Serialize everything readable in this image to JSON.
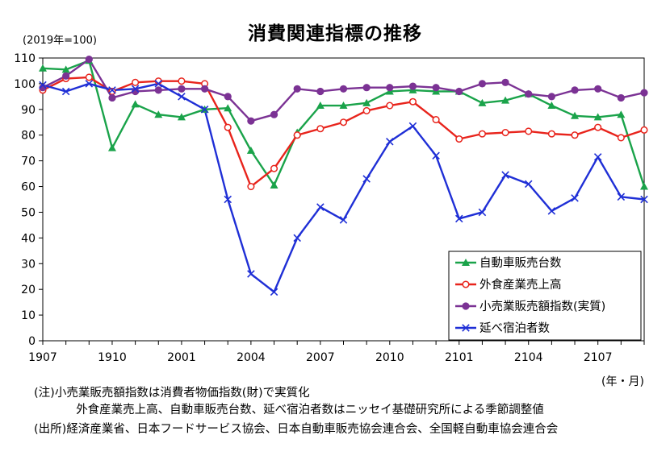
{
  "chart_data": {
    "type": "line",
    "title": "消費関連指標の推移",
    "unit_label": "(2019年=100)",
    "x_unit_label": "(年・月)",
    "x": [
      "1907",
      "1908",
      "1909",
      "1910",
      "1911",
      "1912",
      "2001",
      "2002",
      "2003",
      "2004",
      "2005",
      "2006",
      "2007",
      "2008",
      "2009",
      "2010",
      "2011",
      "2012",
      "2101",
      "2102",
      "2103",
      "2104",
      "2105",
      "2106",
      "2107",
      "2108",
      "2109"
    ],
    "x_tick_labels": [
      "1907",
      "1910",
      "2001",
      "2004",
      "2007",
      "2010",
      "2101",
      "2104",
      "2107"
    ],
    "ylim": [
      0,
      110
    ],
    "y_ticks": [
      0,
      10,
      20,
      30,
      40,
      50,
      60,
      70,
      80,
      90,
      100,
      110
    ],
    "grid": false,
    "legend_position": "bottom-right",
    "series": [
      {
        "name": "自動車販売台数",
        "color": "#1aa34a",
        "marker": "triangle",
        "values": [
          106,
          105.5,
          109,
          75,
          92,
          88,
          87,
          90,
          90.5,
          74,
          60.5,
          81,
          91.5,
          91.5,
          92.5,
          97,
          97.5,
          97,
          97,
          92.5,
          93.5,
          96,
          91.5,
          87.5,
          87,
          88,
          60
        ]
      },
      {
        "name": "外食産業売上高",
        "color": "#e8241c",
        "marker": "open-circle",
        "values": [
          97.5,
          102,
          102.5,
          97,
          100.5,
          101,
          101,
          100,
          83,
          60,
          67,
          80,
          82.5,
          85,
          89.5,
          91.5,
          93,
          86,
          78.5,
          80.5,
          81,
          81.5,
          80.5,
          80,
          83,
          79,
          82
        ]
      },
      {
        "name": "小売業販売額指数(実質)",
        "color": "#7b3294",
        "marker": "circle",
        "values": [
          98.5,
          103,
          109.5,
          94.5,
          97,
          97.5,
          98,
          98,
          95,
          85.5,
          88,
          98,
          97,
          98,
          98.5,
          98.5,
          99,
          98.5,
          97,
          100,
          100.5,
          96,
          95,
          97.5,
          98,
          94.5,
          96.5
        ]
      },
      {
        "name": "延べ宿泊者数",
        "color": "#1f2fd6",
        "marker": "x",
        "values": [
          99.5,
          97,
          100,
          97.5,
          98,
          100,
          95,
          90,
          55,
          26,
          19,
          40,
          52,
          47,
          63,
          77.5,
          83.5,
          72,
          47.5,
          50,
          64.5,
          61,
          50.5,
          55.5,
          71.5,
          56,
          55
        ]
      }
    ]
  },
  "notes": [
    "(注)小売業販売額指数は消費者物価指数(財)で実質化",
    "外食産業売上高、自動車販売台数、延べ宿泊者数はニッセイ基礎研究所による季節調整値",
    "(出所)経済産業省、日本フードサービス協会、日本自動車販売協会連合会、全国軽自動車協会連合会"
  ]
}
